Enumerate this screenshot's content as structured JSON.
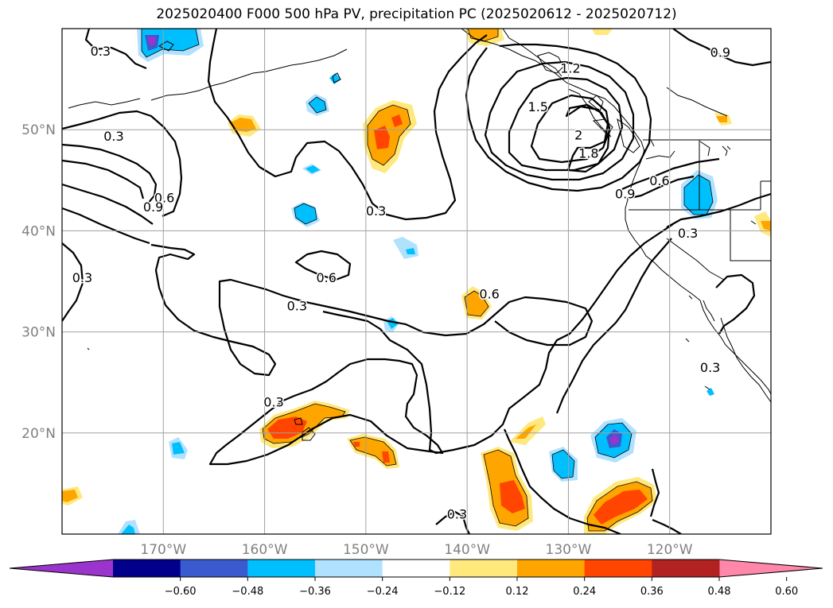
{
  "title": "2025020400 F000 500 hPa PV, precipitation PC (2025020612 - 2025020712)",
  "chart_data": {
    "type": "map",
    "title": "2025020400 F000 500 hPa PV, precipitation PC (2025020612 - 2025020712)",
    "lon_ticks": [
      "170°W",
      "160°W",
      "150°W",
      "140°W",
      "130°W",
      "120°W"
    ],
    "lat_ticks": [
      "50°N",
      "40°N",
      "30°N",
      "20°N"
    ],
    "lon_tick_values": [
      -170,
      -160,
      -150,
      -140,
      -130,
      -120
    ],
    "lat_tick_values": [
      50,
      40,
      30,
      20
    ],
    "lon_range": [
      -180,
      -110
    ],
    "lat_range": [
      10,
      60
    ],
    "grid": true,
    "colorbar": {
      "orientation": "horizontal",
      "extend": "both",
      "ticks": [
        "−0.60",
        "−0.48",
        "−0.36",
        "−0.24",
        "−0.12",
        "0.12",
        "0.24",
        "0.36",
        "0.48",
        "0.60"
      ],
      "colors": [
        "#9a34cc",
        "#00008b",
        "#3a5bcf",
        "#00bfff",
        "#b0e2ff",
        "#ffffff",
        "#ffe87c",
        "#ffa500",
        "#ff4500",
        "#b22222",
        "#ff88aa"
      ]
    },
    "contour_labels": [
      {
        "text": "0.3",
        "lon": -176.2,
        "lat": 57.8
      },
      {
        "text": "0.9",
        "lon": -115.0,
        "lat": 57.7
      },
      {
        "text": "1.2",
        "lon": -129.8,
        "lat": 56.1
      },
      {
        "text": "1.5",
        "lon": -133.0,
        "lat": 52.3
      },
      {
        "text": "1.8",
        "lon": -128.0,
        "lat": 47.7
      },
      {
        "text": "2",
        "lon": -129.0,
        "lat": 49.5
      },
      {
        "text": "0.9",
        "lon": -124.4,
        "lat": 43.7
      },
      {
        "text": "0.6",
        "lon": -121.0,
        "lat": 45.0
      },
      {
        "text": "0.3",
        "lon": -174.9,
        "lat": 49.4
      },
      {
        "text": "0.6",
        "lon": -169.9,
        "lat": 43.3
      },
      {
        "text": "0.9",
        "lon": -171.0,
        "lat": 42.4
      },
      {
        "text": "0.3",
        "lon": -149.0,
        "lat": 42.0
      },
      {
        "text": "0.3",
        "lon": -118.2,
        "lat": 39.8
      },
      {
        "text": "0.3",
        "lon": -178.0,
        "lat": 35.4
      },
      {
        "text": "0.6",
        "lon": -153.9,
        "lat": 35.4
      },
      {
        "text": "0.3",
        "lon": -156.8,
        "lat": 32.6
      },
      {
        "text": "0.6",
        "lon": -137.8,
        "lat": 33.8
      },
      {
        "text": "0.3",
        "lon": -116.0,
        "lat": 26.5
      },
      {
        "text": "0.3",
        "lon": -159.1,
        "lat": 23.1
      },
      {
        "text": "0.3",
        "lon": -141.0,
        "lat": 12.0
      }
    ],
    "notes": "Black PV contours over shaded precipitation anomalies; coastline of western North America on the right."
  }
}
